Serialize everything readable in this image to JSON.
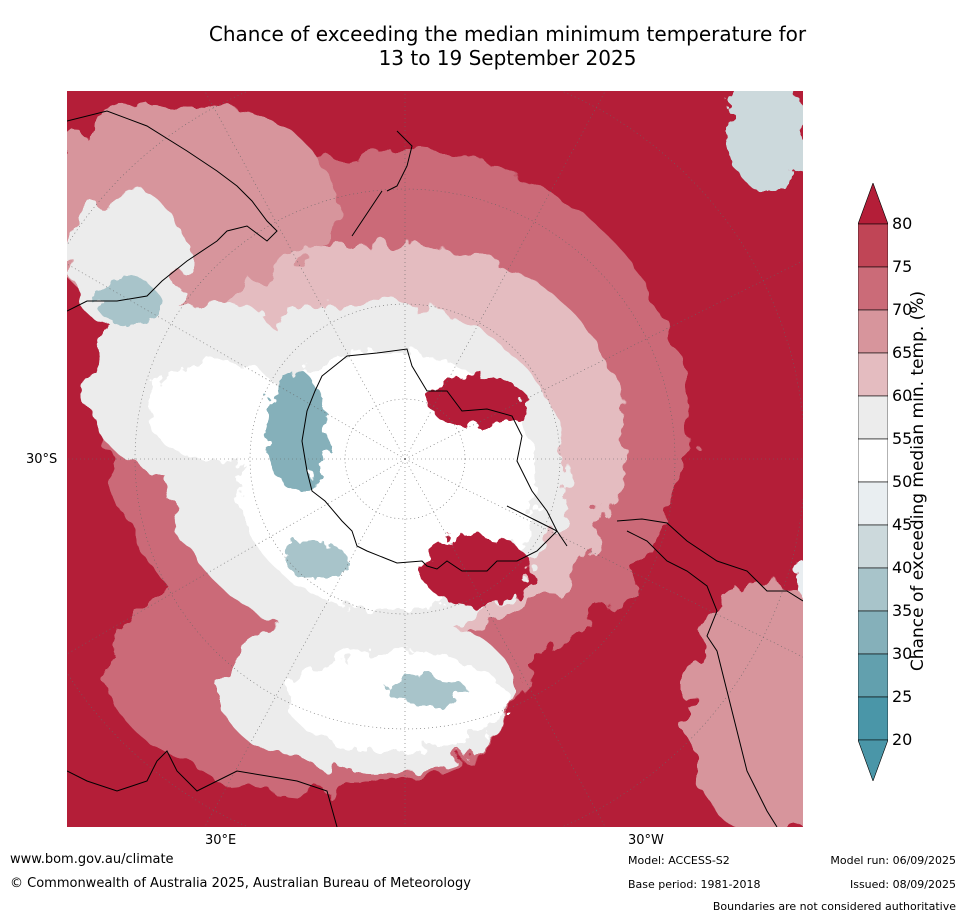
{
  "title_line1": "Chance of exceeding the median minimum temperature for",
  "title_line2": "13 to 19 September 2025",
  "labels": {
    "lat_30s": "30°S",
    "lon_30e": "30°E",
    "lon_30w": "30°W"
  },
  "colorbar": {
    "label": "Chance of exceeding median min. temp. (%)",
    "ticks": [
      "80",
      "75",
      "70",
      "65",
      "60",
      "55",
      "50",
      "45",
      "40",
      "35",
      "30",
      "25",
      "20"
    ],
    "colors_high_to_low": [
      "#b41e38",
      "#c04556",
      "#cb6b78",
      "#d7959c",
      "#e4bcc0",
      "#ececec",
      "#ffffff",
      "#e9eef1",
      "#ccd9dc",
      "#a8c4ca",
      "#85b0ba",
      "#62a0ae",
      "#4a96a8"
    ],
    "over_color": "#b41e38",
    "under_color": "#4a96a8"
  },
  "footer": {
    "website": "www.bom.gov.au/climate",
    "copyright": "© Commonwealth of Australia 2025, Australian Bureau of Meteorology",
    "model": "Model: ACCESS-S2",
    "base_period": "Base period: 1981-2018",
    "model_run": "Model run: 06/09/2025",
    "issued": "Issued: 08/09/2025",
    "disclaimer": "Boundaries are not considered authoritative"
  }
}
